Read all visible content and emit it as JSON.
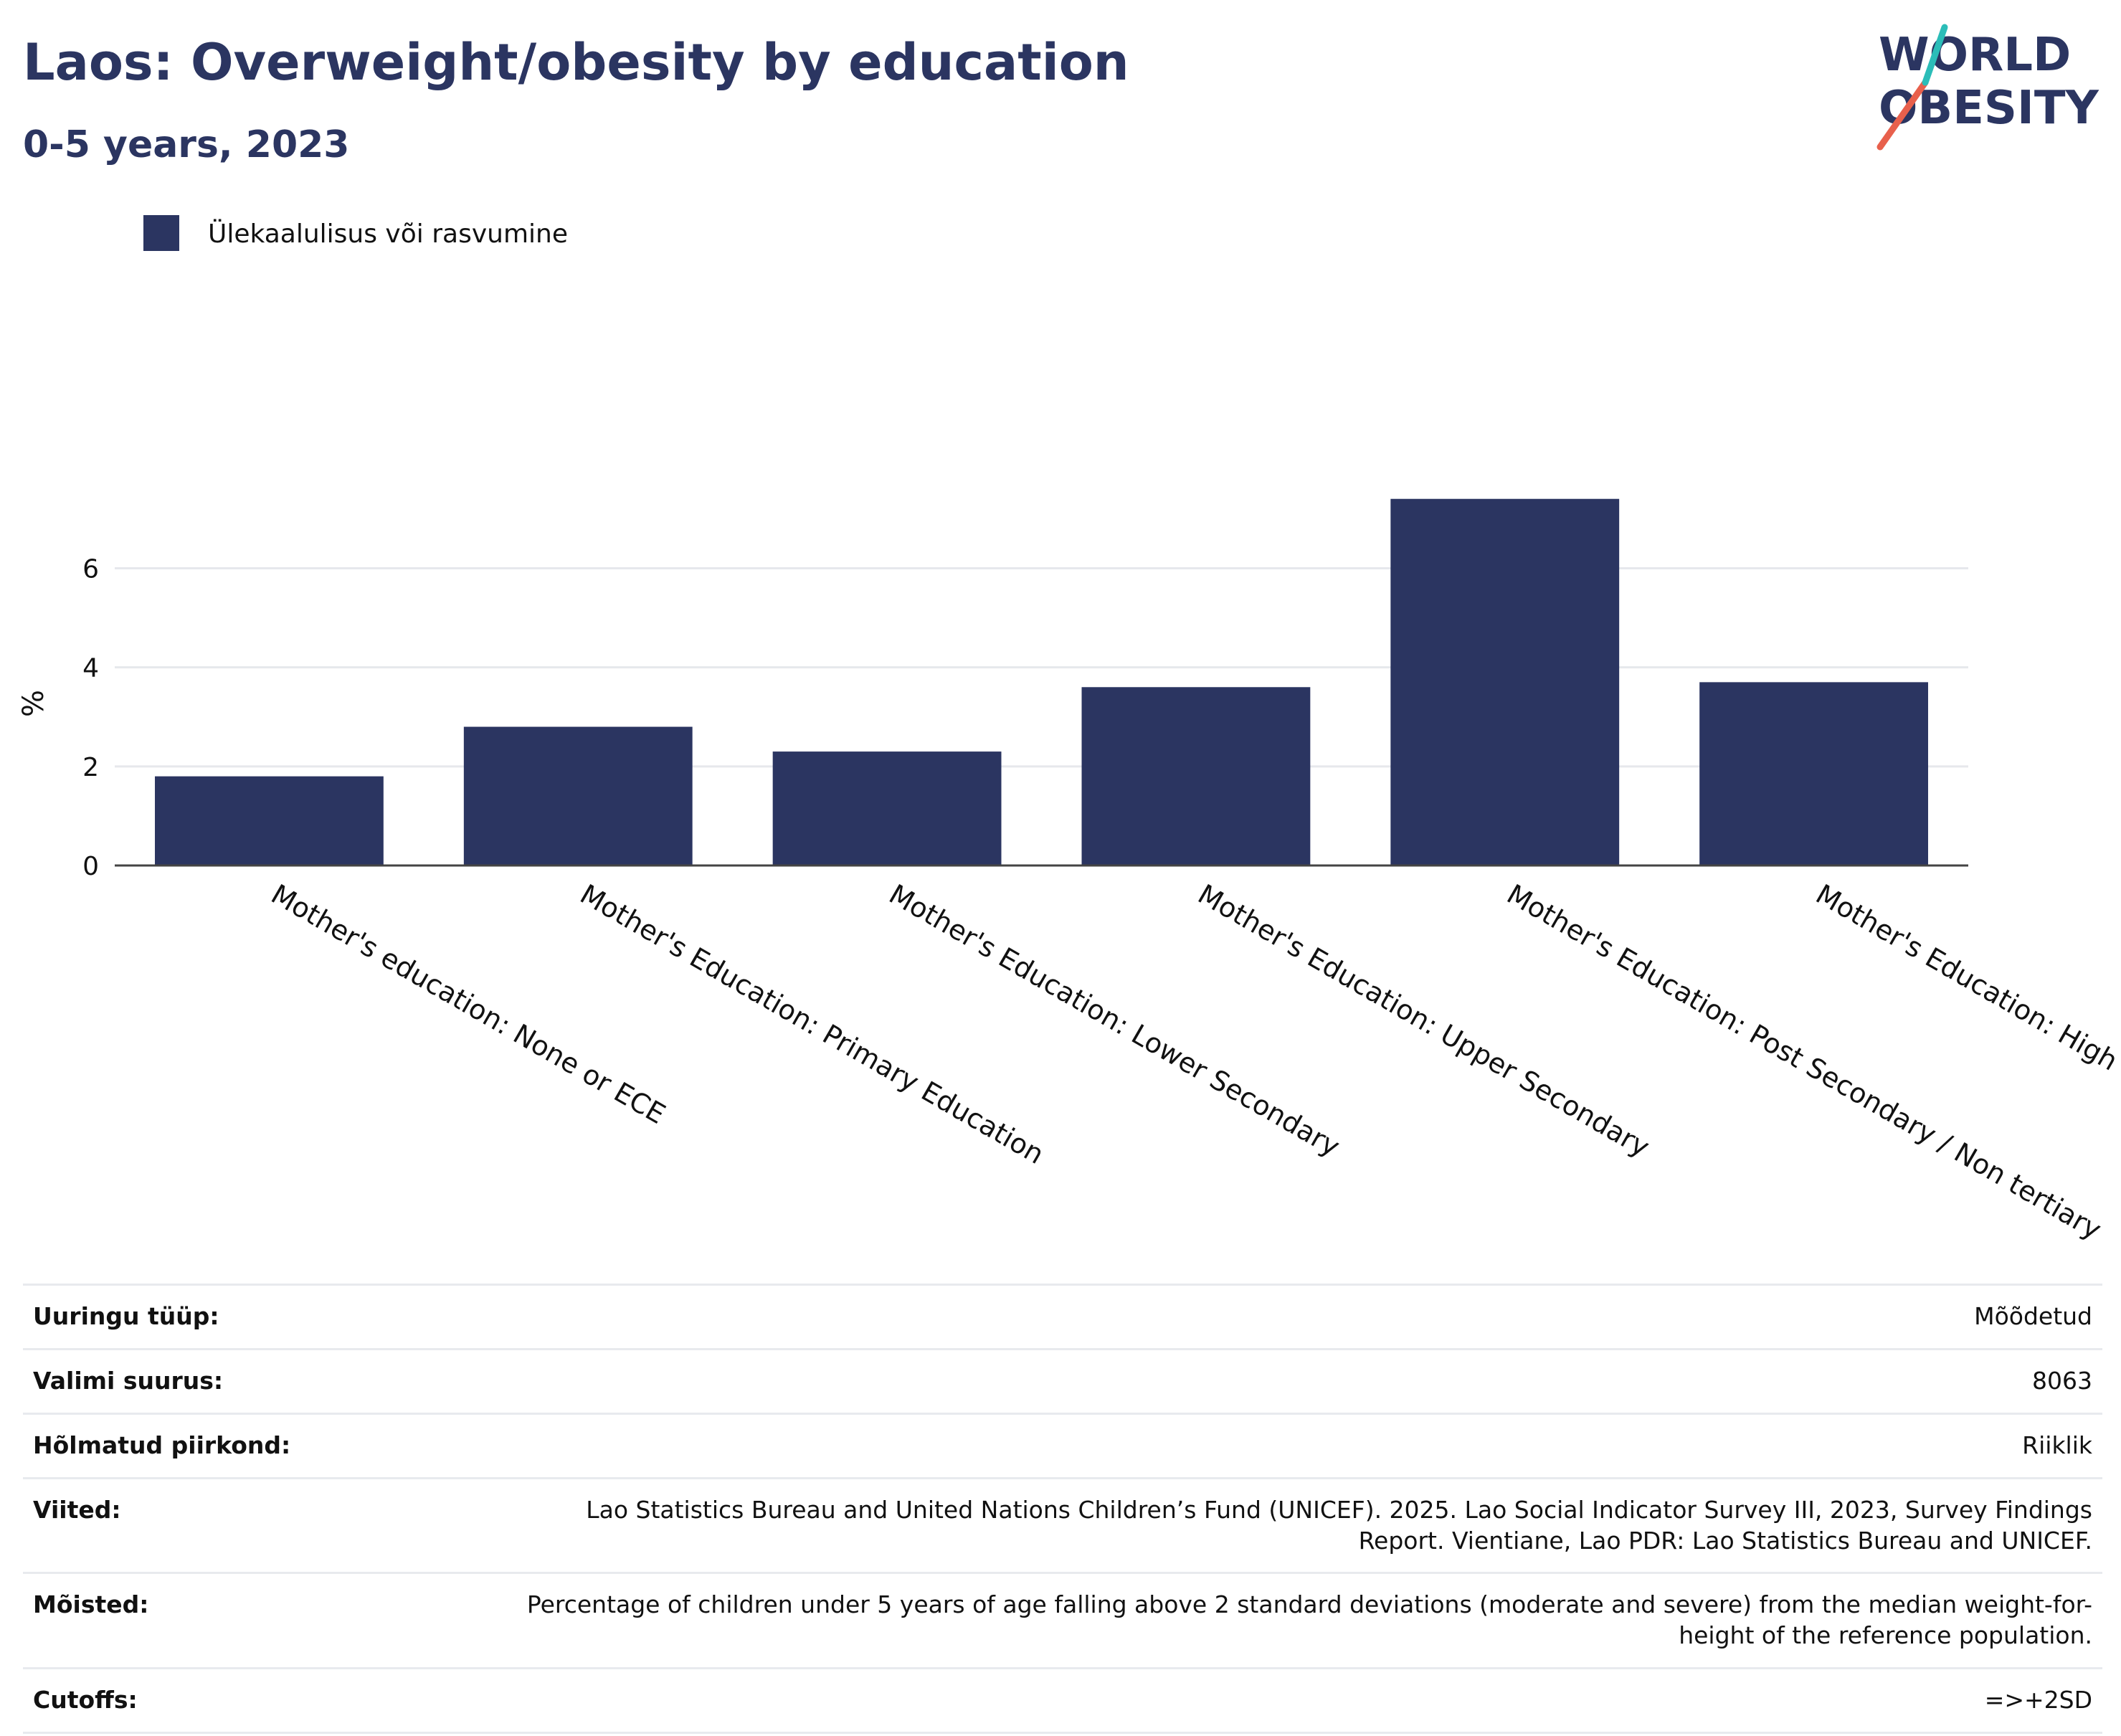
{
  "header": {
    "title": "Laos: Overweight/obesity by education",
    "subtitle": "0-5 years, 2023"
  },
  "logo": {
    "line1": "WORLD",
    "line2": "OBESITY",
    "text_color": "#2b3561",
    "slash_colors": [
      "#e8604c",
      "#2bbdb8"
    ]
  },
  "chart_data": {
    "type": "bar",
    "title": "Laos: Overweight/obesity by education",
    "subtitle": "0-5 years, 2023",
    "ylabel": "%",
    "xlabel": "",
    "ylim": [
      0,
      7.7
    ],
    "yticks": [
      "0",
      "2",
      "4",
      "6"
    ],
    "grid": true,
    "legend_position": "top-left",
    "categories": [
      "Mother's education: None or ECE",
      "Mother's Education: Primary Education",
      "Mother's Education: Lower Secondary",
      "Mother's Education: Upper Secondary",
      "Mother's Education: Post Secondary / Non tertiary",
      "Mother's Education: High"
    ],
    "series": [
      {
        "name": "Ülekaalulisus või rasvumine",
        "color": "#2b3561",
        "values": [
          1.8,
          2.8,
          2.3,
          3.6,
          7.4,
          3.7
        ]
      }
    ]
  },
  "info": [
    {
      "key": "Uuringu tüüp:",
      "value": "Mõõdetud"
    },
    {
      "key": "Valimi suurus:",
      "value": "8063"
    },
    {
      "key": "Hõlmatud piirkond:",
      "value": "Riiklik"
    },
    {
      "key": "Viited:",
      "value": "Lao Statistics Bureau and United Nations Children’s Fund (UNICEF). 2025. Lao Social Indicator Survey III, 2023, Survey Findings Report. Vientiane, Lao PDR: Lao Statistics Bureau and UNICEF."
    },
    {
      "key": "Mõisted:",
      "value": "Percentage of children under 5 years of age falling above 2 standard deviations (moderate and severe) from the median weight-for-height of the reference population."
    },
    {
      "key": "Cutoffs:",
      "value": "=>+2SD"
    }
  ]
}
